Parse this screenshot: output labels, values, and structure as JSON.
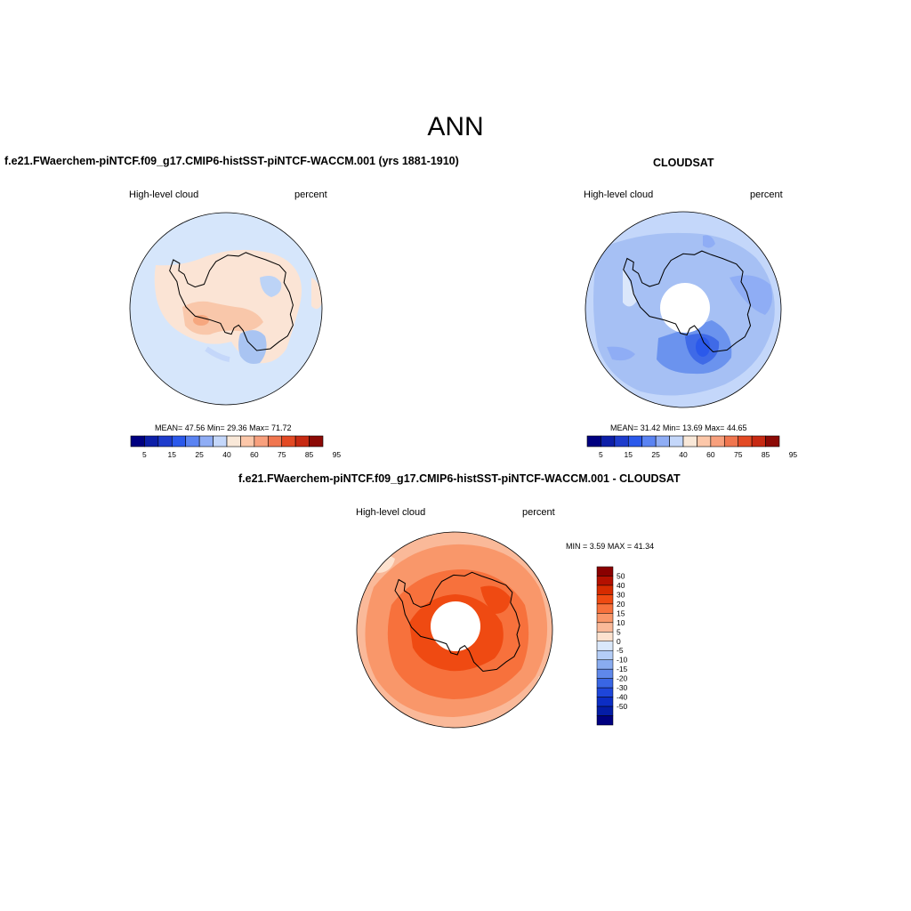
{
  "figure": {
    "title": "ANN"
  },
  "colors": {
    "levels": [
      "#000080",
      "#0d1fa8",
      "#1e3ccc",
      "#2b59eb",
      "#5a83f2",
      "#8fadf5",
      "#c4d7fa",
      "#f9e8d8",
      "#fcc7a9",
      "#f8a07d",
      "#f0764f",
      "#e34a24",
      "#c72a13",
      "#8c0a06"
    ],
    "diff": [
      "#8a0000",
      "#b41000",
      "#d62b00",
      "#ef4a12",
      "#f7713c",
      "#f9976a",
      "#fab999",
      "#fde2cf",
      "#dae8fb",
      "#b4cdf7",
      "#89acf0",
      "#5f88ea",
      "#3966e4",
      "#1e46da",
      "#0c2dc4",
      "#041ca6",
      "#000080"
    ]
  },
  "panels": {
    "model": {
      "title": "f.e21.FWaerchem-piNTCF.f09_g17.CMIP6-histSST-piNTCF-WACCM.001 (yrs 1881-1910)",
      "variable": "High-level cloud",
      "units": "percent",
      "mean_label": "MEAN=",
      "mean": "47.56",
      "min_label": "Min=",
      "min": "29.36",
      "max_label": "Max=",
      "max": "71.72"
    },
    "obs": {
      "title": "CLOUDSAT",
      "variable": "High-level cloud",
      "units": "percent",
      "mean_label": "MEAN=",
      "mean": "31.42",
      "min_label": "Min=",
      "min": "13.69",
      "max_label": "Max=",
      "max": "44.65"
    },
    "diff": {
      "title": "f.e21.FWaerchem-piNTCF.f09_g17.CMIP6-histSST-piNTCF-WACCM.001 - CLOUDSAT",
      "variable": "High-level cloud",
      "units": "percent",
      "min_label": "MIN =",
      "min": "3.59",
      "max_label": "MAX =",
      "max": "41.34"
    }
  },
  "colorbar_ticks": [
    "5",
    "15",
    "25",
    "40",
    "60",
    "75",
    "85",
    "95"
  ],
  "diff_colorbar_ticks": [
    "50",
    "40",
    "30",
    "20",
    "15",
    "10",
    "5",
    "0",
    "-5",
    "-10",
    "-15",
    "-20",
    "-30",
    "-40",
    "-50"
  ]
}
